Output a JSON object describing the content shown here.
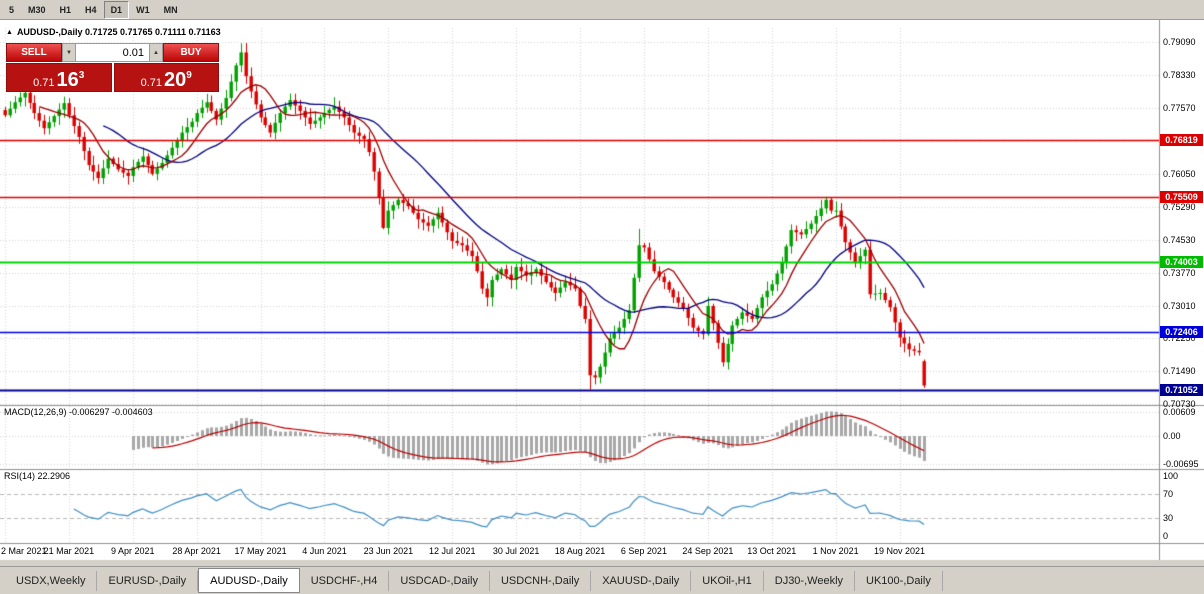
{
  "toolbar": {
    "timeframes": [
      "5",
      "M30",
      "H1",
      "H4",
      "D1",
      "W1",
      "MN"
    ],
    "active": "D1"
  },
  "chart": {
    "collapse_icon": "▲",
    "header": "AUDUSD-,Daily  0.71725 0.71765 0.71111 0.71163"
  },
  "trade_panel": {
    "sell_label": "SELL",
    "buy_label": "BUY",
    "volume": "0.01",
    "spin_down": "▼",
    "spin_up": "▲",
    "sell_price": {
      "base": "0.71",
      "pips": "16",
      "pt": "3"
    },
    "buy_price": {
      "base": "0.71",
      "pips": "20",
      "pt": "9"
    }
  },
  "price_axis": [
    "0.79090",
    "0.78330",
    "0.77570",
    "0.76810",
    "0.76050",
    "0.75290",
    "0.74530",
    "0.73770",
    "0.73010",
    "0.72250",
    "0.71490",
    "0.70730"
  ],
  "levels": [
    {
      "price": 0.76819,
      "label": "0.76819",
      "line": "#dd0000",
      "width": 1.4,
      "badge": "#dd0000"
    },
    {
      "price": 0.75509,
      "label": "0.75509",
      "line": "#dd0000",
      "width": 1.4,
      "badge": "#dd0000"
    },
    {
      "price": 0.74003,
      "label": "0.74003",
      "line": "#00d200",
      "width": 2,
      "badge": "#00bb00"
    },
    {
      "price": 0.72406,
      "label": "0.72406",
      "line": "#0000e0",
      "width": 1.4,
      "badge": "#0000dd"
    },
    {
      "price": 0.71052,
      "label": "0.71052",
      "line": "#000090",
      "width": 2,
      "badge": "#000090"
    }
  ],
  "time_axis": [
    "2 Mar 2021",
    "21 Mar 2021",
    "9 Apr 2021",
    "28 Apr 2021",
    "17 May 2021",
    "4 Jun 2021",
    "23 Jun 2021",
    "12 Jul 2021",
    "30 Jul 2021",
    "18 Aug 2021",
    "6 Sep 2021",
    "24 Sep 2021",
    "13 Oct 2021",
    "1 Nov 2021",
    "19 Nov 2021"
  ],
  "indicators": {
    "macd": {
      "header": "MACD(12,26,9) -0.006297 -0.004603",
      "axis": [
        {
          "v": 0.00609,
          "label": "0.00609"
        },
        {
          "v": 0,
          "label": "0.00"
        },
        {
          "v": -0.00695,
          "label": "-0.00695"
        }
      ]
    },
    "rsi": {
      "header": "RSI(14) 22.2906",
      "axis": [
        {
          "v": 100,
          "label": "100"
        },
        {
          "v": 70,
          "label": "70"
        },
        {
          "v": 30,
          "label": "30"
        },
        {
          "v": 0,
          "label": "0"
        }
      ],
      "levels": [
        70,
        30
      ]
    }
  },
  "tabs": [
    {
      "label": "USDX,Weekly"
    },
    {
      "label": "EURUSD-,Daily"
    },
    {
      "label": "AUDUSD-,Daily",
      "active": true
    },
    {
      "label": "USDCHF-,H4"
    },
    {
      "label": "USDCAD-,Daily"
    },
    {
      "label": "USDCNH-,Daily"
    },
    {
      "label": "XAUUSD-,Daily"
    },
    {
      "label": "UKOil-,H1"
    },
    {
      "label": "DJ30-,Weekly"
    },
    {
      "label": "UK100-,Daily"
    }
  ],
  "chart_data": {
    "type": "candlestick",
    "symbol": "AUDUSD-",
    "timeframe": "Daily",
    "ohlc_current": {
      "open": 0.71725,
      "high": 0.71765,
      "low": 0.71111,
      "close": 0.71163
    },
    "bid": 0.71163,
    "ask": 0.71209,
    "num_candles": 188,
    "price_range": {
      "top": 0.79413,
      "bottom": 0.70738
    },
    "close_anchors": [
      [
        0,
        0.774
      ],
      [
        2,
        0.777
      ],
      [
        4,
        0.7792
      ],
      [
        6,
        0.7745
      ],
      [
        8,
        0.771
      ],
      [
        10,
        0.7738
      ],
      [
        12,
        0.7768
      ],
      [
        13,
        0.774
      ],
      [
        15,
        0.769
      ],
      [
        17,
        0.7625
      ],
      [
        19,
        0.7595
      ],
      [
        21,
        0.764
      ],
      [
        23,
        0.7615
      ],
      [
        25,
        0.76
      ],
      [
        26,
        0.762
      ],
      [
        28,
        0.7645
      ],
      [
        30,
        0.7605
      ],
      [
        32,
        0.763
      ],
      [
        34,
        0.7665
      ],
      [
        36,
        0.77
      ],
      [
        38,
        0.7725
      ],
      [
        39,
        0.7745
      ],
      [
        41,
        0.777
      ],
      [
        43,
        0.773
      ],
      [
        45,
        0.778
      ],
      [
        47,
        0.7855
      ],
      [
        48,
        0.7885
      ],
      [
        49,
        0.783
      ],
      [
        50,
        0.7795
      ],
      [
        52,
        0.7735
      ],
      [
        54,
        0.77
      ],
      [
        56,
        0.7745
      ],
      [
        58,
        0.7775
      ],
      [
        60,
        0.775
      ],
      [
        62,
        0.772
      ],
      [
        64,
        0.7735
      ],
      [
        65,
        0.7745
      ],
      [
        67,
        0.776
      ],
      [
        69,
        0.7735
      ],
      [
        71,
        0.77
      ],
      [
        73,
        0.7685
      ],
      [
        74,
        0.7655
      ],
      [
        75,
        0.761
      ],
      [
        76,
        0.755
      ],
      [
        77,
        0.748
      ],
      [
        78,
        0.752
      ],
      [
        80,
        0.7545
      ],
      [
        82,
        0.753
      ],
      [
        84,
        0.75
      ],
      [
        86,
        0.7485
      ],
      [
        88,
        0.7515
      ],
      [
        90,
        0.747
      ],
      [
        91,
        0.745
      ],
      [
        93,
        0.744
      ],
      [
        95,
        0.7415
      ],
      [
        96,
        0.738
      ],
      [
        97,
        0.734
      ],
      [
        98,
        0.732
      ],
      [
        99,
        0.736
      ],
      [
        101,
        0.7385
      ],
      [
        103,
        0.736
      ],
      [
        104,
        0.739
      ],
      [
        106,
        0.737
      ],
      [
        108,
        0.7385
      ],
      [
        110,
        0.7355
      ],
      [
        112,
        0.733
      ],
      [
        114,
        0.7355
      ],
      [
        116,
        0.734
      ],
      [
        117,
        0.73
      ],
      [
        118,
        0.727
      ],
      [
        119,
        0.714
      ],
      [
        120,
        0.7135
      ],
      [
        121,
        0.716
      ],
      [
        123,
        0.7225
      ],
      [
        125,
        0.725
      ],
      [
        127,
        0.729
      ],
      [
        129,
        0.744
      ],
      [
        130,
        0.7435
      ],
      [
        132,
        0.738
      ],
      [
        134,
        0.7355
      ],
      [
        136,
        0.732
      ],
      [
        138,
        0.7295
      ],
      [
        140,
        0.725
      ],
      [
        142,
        0.7235
      ],
      [
        143,
        0.73
      ],
      [
        144,
        0.726
      ],
      [
        146,
        0.717
      ],
      [
        148,
        0.7255
      ],
      [
        150,
        0.7285
      ],
      [
        152,
        0.727
      ],
      [
        154,
        0.732
      ],
      [
        156,
        0.735
      ],
      [
        158,
        0.74
      ],
      [
        160,
        0.7475
      ],
      [
        162,
        0.7465
      ],
      [
        164,
        0.749
      ],
      [
        166,
        0.7525
      ],
      [
        167,
        0.7545
      ],
      [
        168,
        0.752
      ],
      [
        169,
        0.752
      ],
      [
        171,
        0.7447
      ],
      [
        173,
        0.74
      ],
      [
        175,
        0.743
      ],
      [
        176,
        0.7327
      ],
      [
        178,
        0.733
      ],
      [
        180,
        0.7297
      ],
      [
        182,
        0.7227
      ],
      [
        184,
        0.72
      ],
      [
        186,
        0.7193
      ],
      [
        187,
        0.71163
      ]
    ],
    "overrides": {
      "48": {
        "h": 0.7906
      },
      "77": {
        "l": 0.7477
      },
      "119": {
        "l": 0.7107
      },
      "129": {
        "h": 0.7478
      },
      "146": {
        "l": 0.716
      },
      "167": {
        "h": 0.7552
      },
      "187": {
        "o": 0.71725,
        "h": 0.71765,
        "l": 0.71111,
        "c": 0.71163
      }
    },
    "ma_fast": {
      "period": 8,
      "color": "#990000"
    },
    "ma_slow": {
      "period": 21,
      "color": "#000080"
    },
    "colors": {
      "bull": "#00a000",
      "bear": "#dd0000",
      "grid": "#d6d6d6",
      "macd_hist": "#a8a8a8",
      "macd_signal": "#bb0000",
      "rsi": "#3f8fc4",
      "separator": "#909090"
    }
  }
}
